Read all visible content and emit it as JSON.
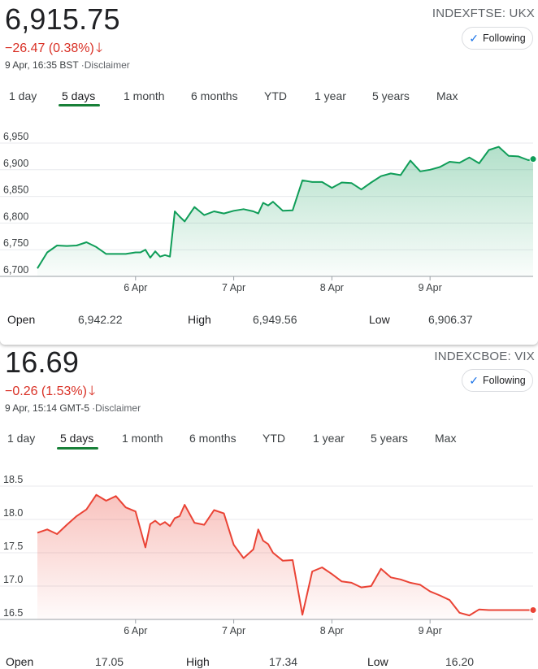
{
  "panels": [
    {
      "price": "6,915.75",
      "change": "−26.47 (0.38%)",
      "change_arrow": "🡓",
      "timestamp": "9 Apr, 16:35 BST",
      "disclaimer": "·Disclaimer",
      "ticker": "INDEXFTSE: UKX",
      "follow_label": "Following",
      "tabs": [
        "1 day",
        "5 days",
        "1 month",
        "6 months",
        "YTD",
        "1 year",
        "5 years",
        "Max"
      ],
      "active_tab": "5 days",
      "stats": [
        {
          "label": "Open",
          "value": "6,942.22"
        },
        {
          "label": "High",
          "value": "6,949.56"
        },
        {
          "label": "Low",
          "value": "6,906.37"
        }
      ],
      "colors": {
        "line": "#0f9d58",
        "fill": "#0f9d58"
      }
    },
    {
      "price": "16.69",
      "change": "−0.26 (1.53%)",
      "change_arrow": "🡓",
      "timestamp": "9 Apr, 15:14 GMT-5",
      "disclaimer": "·Disclaimer",
      "ticker": "INDEXCBOE: VIX",
      "follow_label": "Following",
      "tabs": [
        "1 day",
        "5 days",
        "1 month",
        "6 months",
        "YTD",
        "1 year",
        "5 years",
        "Max"
      ],
      "active_tab": "5 days",
      "stats": [
        {
          "label": "Open",
          "value": "17.05"
        },
        {
          "label": "High",
          "value": "17.34"
        },
        {
          "label": "Low",
          "value": "16.20"
        }
      ],
      "colors": {
        "line": "#ea4335",
        "fill": "#ea4335"
      }
    }
  ],
  "chart_data": [
    {
      "type": "area",
      "title": "",
      "xlabel": "",
      "ylabel": "",
      "x_ticks": [
        "6 Apr",
        "7 Apr",
        "8 Apr",
        "9 Apr"
      ],
      "y_ticks": [
        "6,950",
        "6,900",
        "6,850",
        "6,800",
        "6,750",
        "6,700"
      ],
      "y_tick_values": [
        6950,
        6900,
        6850,
        6800,
        6750,
        6700
      ],
      "ylim": [
        6700,
        6950
      ],
      "grid": true,
      "x": [
        0,
        0.1,
        0.2,
        0.3,
        0.4,
        0.5,
        0.6,
        0.7,
        0.8,
        0.9,
        1.0,
        1.05,
        1.1,
        1.15,
        1.2,
        1.25,
        1.3,
        1.35,
        1.4,
        1.45,
        1.5,
        1.6,
        1.7,
        1.8,
        1.9,
        2.0,
        2.1,
        2.2,
        2.25,
        2.3,
        2.35,
        2.4,
        2.5,
        2.6,
        2.7,
        2.8,
        2.9,
        3.0,
        3.1,
        3.2,
        3.3,
        3.4,
        3.5,
        3.6,
        3.7,
        3.8,
        3.9,
        4.0,
        4.1,
        4.2,
        4.3,
        4.4,
        4.5,
        4.6,
        4.7,
        4.8,
        4.9,
        5.0,
        5.05
      ],
      "series": [
        {
          "values": [
            6715,
            6745,
            6758,
            6757,
            6758,
            6764,
            6755,
            6742,
            6742,
            6742,
            6745,
            6745,
            6750,
            6735,
            6747,
            6737,
            6740,
            6737,
            6822,
            6812,
            6803,
            6830,
            6815,
            6822,
            6818,
            6823,
            6826,
            6822,
            6818,
            6838,
            6833,
            6840,
            6823,
            6824,
            6880,
            6877,
            6877,
            6866,
            6876,
            6875,
            6863,
            6876,
            6888,
            6893,
            6890,
            6917,
            6897,
            6900,
            6905,
            6915,
            6913,
            6923,
            6912,
            6937,
            6943,
            6926,
            6925,
            6918,
            6920
          ]
        }
      ]
    },
    {
      "type": "area",
      "title": "",
      "xlabel": "",
      "ylabel": "",
      "x_ticks": [
        "6 Apr",
        "7 Apr",
        "8 Apr",
        "9 Apr"
      ],
      "y_ticks": [
        "18.5",
        "18.0",
        "17.5",
        "17.0",
        "16.5"
      ],
      "y_tick_values": [
        18.5,
        18.0,
        17.5,
        17.0,
        16.5
      ],
      "ylim": [
        16.5,
        18.5
      ],
      "grid": true,
      "x": [
        0,
        0.1,
        0.2,
        0.3,
        0.4,
        0.5,
        0.6,
        0.7,
        0.8,
        0.9,
        1.0,
        1.05,
        1.1,
        1.15,
        1.2,
        1.25,
        1.3,
        1.35,
        1.4,
        1.45,
        1.5,
        1.6,
        1.7,
        1.8,
        1.9,
        2.0,
        2.1,
        2.2,
        2.25,
        2.3,
        2.35,
        2.4,
        2.5,
        2.6,
        2.7,
        2.8,
        2.9,
        3.0,
        3.1,
        3.2,
        3.3,
        3.4,
        3.5,
        3.6,
        3.7,
        3.8,
        3.9,
        4.0,
        4.1,
        4.2,
        4.3,
        4.4,
        4.5,
        4.6,
        4.7,
        4.8,
        4.9,
        5.0,
        5.05
      ],
      "series": [
        {
          "values": [
            17.8,
            17.85,
            17.78,
            17.92,
            18.05,
            18.15,
            18.37,
            18.28,
            18.35,
            18.18,
            18.12,
            17.85,
            17.58,
            17.93,
            17.98,
            17.92,
            17.96,
            17.9,
            18.02,
            18.05,
            18.22,
            17.95,
            17.92,
            18.14,
            18.09,
            17.62,
            17.42,
            17.55,
            17.85,
            17.68,
            17.63,
            17.5,
            17.38,
            17.39,
            16.57,
            17.22,
            17.28,
            17.18,
            17.07,
            17.05,
            16.98,
            17.0,
            17.26,
            17.13,
            17.1,
            17.05,
            17.02,
            16.92,
            16.86,
            16.79,
            16.6,
            16.56,
            16.65,
            16.64,
            16.64,
            16.64,
            16.64,
            16.64,
            16.64
          ]
        }
      ]
    }
  ]
}
